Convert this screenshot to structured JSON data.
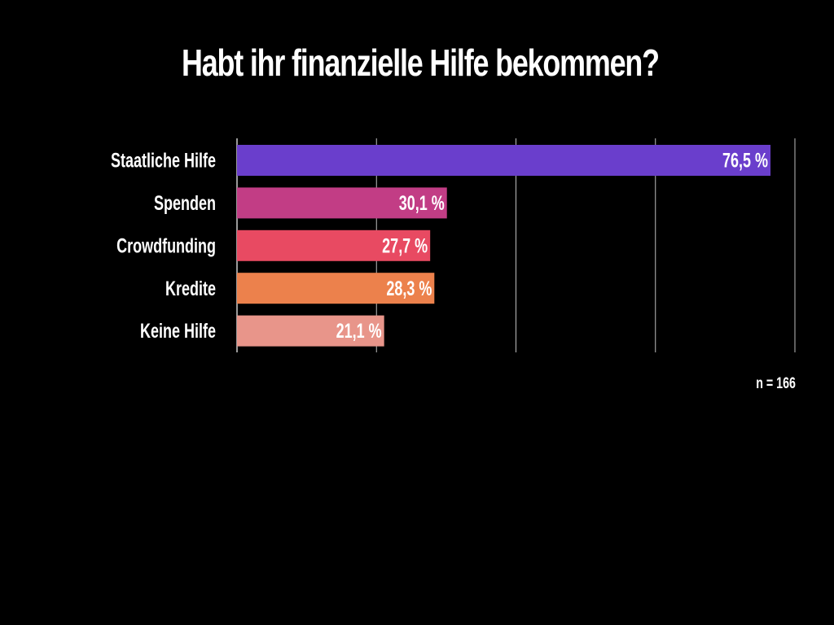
{
  "chart_data": {
    "type": "bar",
    "orientation": "horizontal",
    "title": "Habt ihr finanzielle Hilfe bekommen?",
    "categories": [
      "Staatliche Hilfe",
      "Spenden",
      "Crowdfunding",
      "Kredite",
      "Keine Hilfe"
    ],
    "values": [
      76.5,
      30.1,
      27.7,
      28.3,
      21.1
    ],
    "value_labels": [
      "76,5 %",
      "30,1 %",
      "27,7 %",
      "28,3 %",
      "21,1 %"
    ],
    "colors": [
      "#6a3ecc",
      "#c23d85",
      "#e84a62",
      "#ec814c",
      "#e8958a"
    ],
    "xlim": [
      0,
      80
    ],
    "grid": true,
    "note": "n = 166"
  }
}
